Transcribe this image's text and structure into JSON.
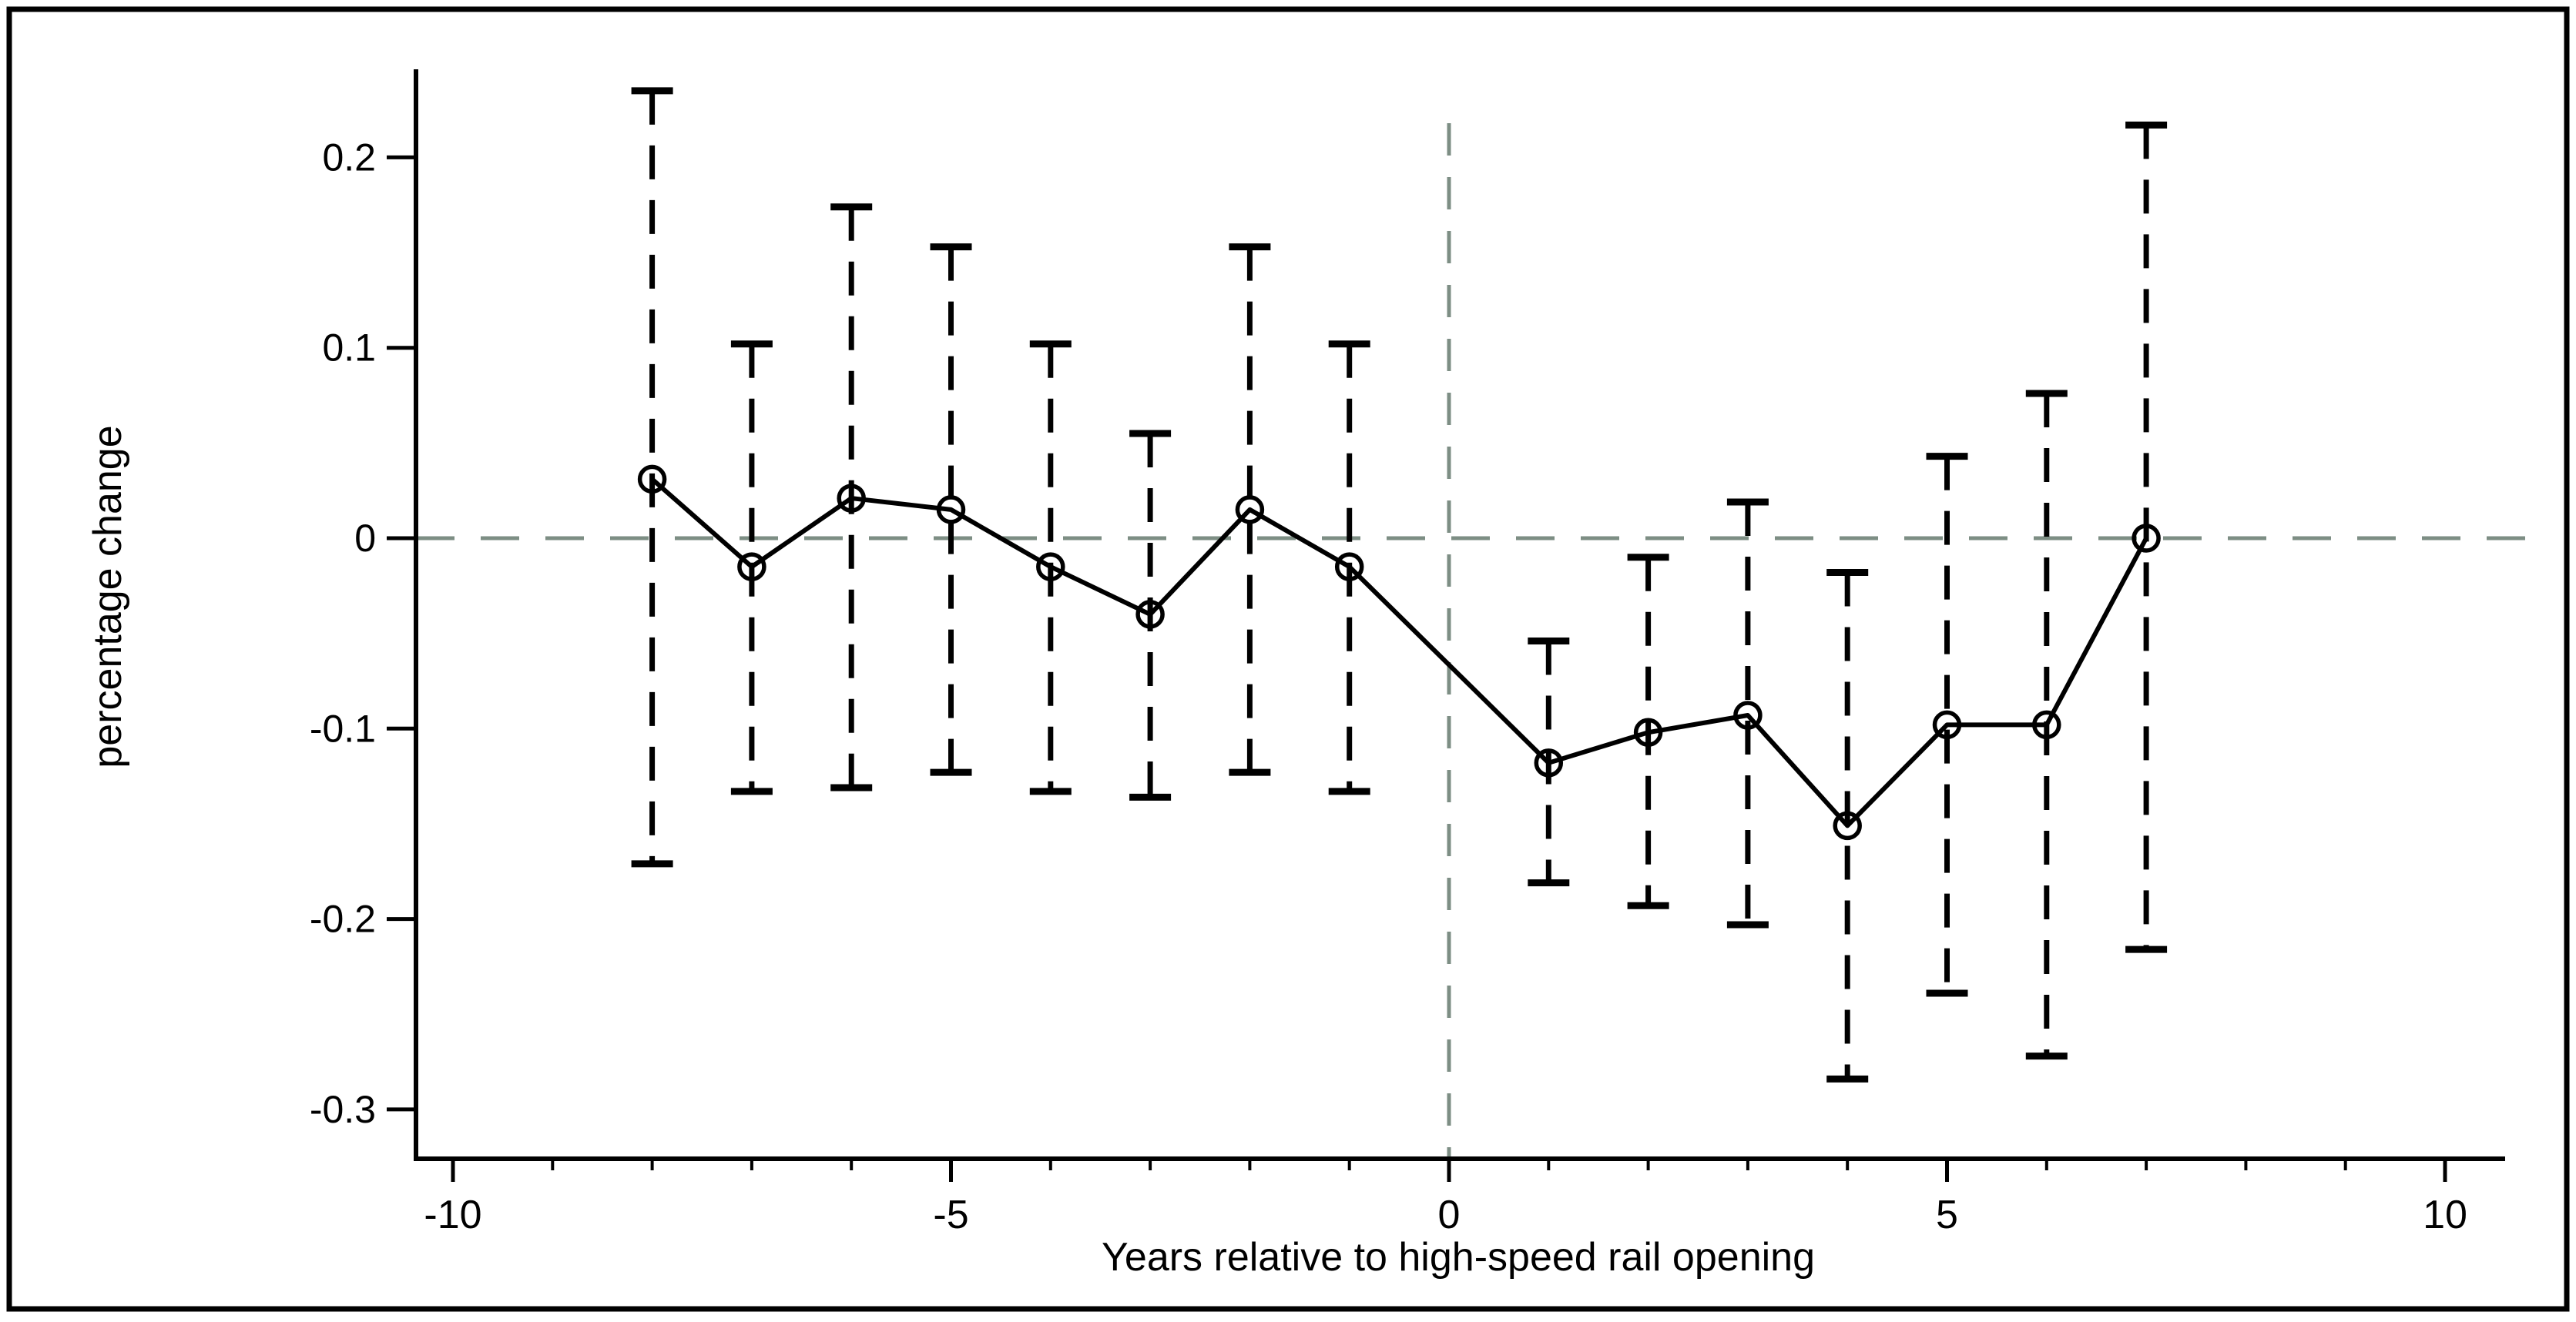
{
  "figure": {
    "background_color": "#ffffff",
    "border_color": "#000000",
    "line_color": "#000000",
    "reference_line_color": "#7d8e84"
  },
  "chart_data": {
    "type": "line",
    "subtype": "event-study with dashed error bars and open-circle markers",
    "title": "",
    "xlabel": "Years relative to high-speed rail opening",
    "ylabel": "percentage change",
    "xlim": [
      -10.4,
      10.6
    ],
    "ylim": [
      -0.326,
      0.246
    ],
    "grid": false,
    "legend_position": "none",
    "x_tick_values": [
      -10,
      -5,
      0,
      5,
      10
    ],
    "x_tick_labels": [
      "-10",
      "-5",
      "0",
      "5",
      "10"
    ],
    "x_minor_tick_values": [
      -10,
      -9,
      -8,
      -7,
      -6,
      -5,
      -4,
      -3,
      -2,
      -1,
      0,
      1,
      2,
      3,
      4,
      5,
      6,
      7,
      8,
      9,
      10
    ],
    "y_tick_values": [
      0.2,
      0.1,
      0,
      -0.1,
      -0.2,
      -0.3
    ],
    "y_tick_labels": [
      "0.2",
      "0.1",
      "0",
      "-0.1",
      "-0.2",
      "-0.3"
    ],
    "reference_lines": [
      {
        "axis": "horizontal",
        "value": 0,
        "style": "dashed",
        "color": "#7d8e84"
      },
      {
        "axis": "vertical",
        "value": 0,
        "style": "dashed",
        "color": "#7d8e84"
      }
    ],
    "series": [
      {
        "name": "point estimate",
        "marker": "open-circle",
        "line_style": "solid",
        "errorbar_style": "dashed",
        "color": "#000000",
        "x": [
          -8,
          -7,
          -6,
          -5,
          -4,
          -3,
          -2,
          -1,
          1,
          2,
          3,
          4,
          5,
          6,
          7
        ],
        "y": [
          0.031,
          -0.015,
          0.021,
          0.015,
          -0.015,
          -0.04,
          0.015,
          -0.015,
          -0.118,
          -0.102,
          -0.093,
          -0.151,
          -0.098,
          -0.098,
          0.0
        ],
        "ci_upper": [
          0.235,
          0.102,
          0.174,
          0.153,
          0.102,
          0.055,
          0.153,
          0.102,
          -0.054,
          -0.01,
          0.019,
          -0.018,
          0.043,
          0.076,
          0.217
        ],
        "ci_lower": [
          -0.171,
          -0.133,
          -0.131,
          -0.123,
          -0.133,
          -0.136,
          -0.123,
          -0.133,
          -0.181,
          -0.193,
          -0.203,
          -0.284,
          -0.239,
          -0.272,
          -0.216
        ]
      }
    ]
  }
}
